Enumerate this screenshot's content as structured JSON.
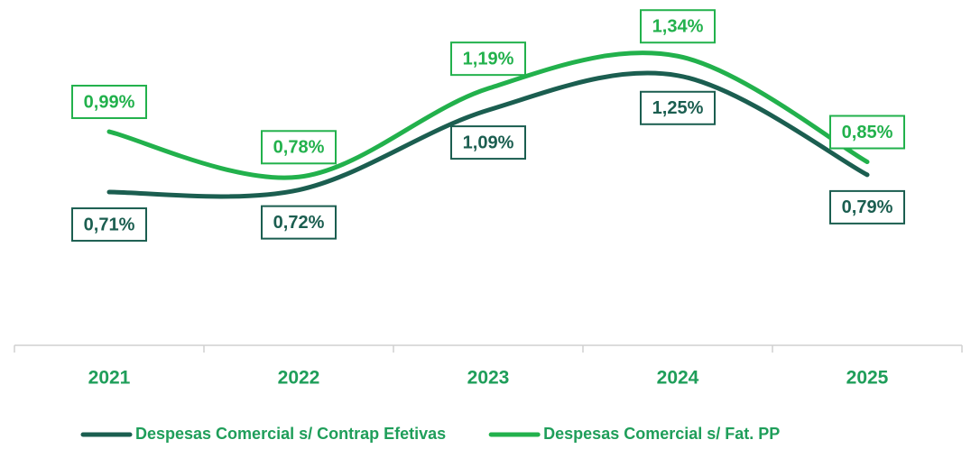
{
  "chart_data": {
    "type": "line",
    "categories": [
      "2021",
      "2022",
      "2023",
      "2024",
      "2025"
    ],
    "series": [
      {
        "name": "Despesas Comercial s/ Contrap Efetivas",
        "color": "#1b5e50",
        "values": [
          0.71,
          0.72,
          1.09,
          1.25,
          0.79
        ],
        "value_labels": [
          "0,71%",
          "0,72%",
          "1,09%",
          "1,25%",
          "0,79%"
        ]
      },
      {
        "name": "Despesas Comercial s/ Fat. PP",
        "color": "#22b14c",
        "values": [
          0.99,
          0.78,
          1.19,
          1.34,
          0.85
        ],
        "value_labels": [
          "0,99%",
          "0,78%",
          "1,19%",
          "1,34%",
          "0,85%"
        ]
      }
    ],
    "ylim": [
      0,
      1.6
    ],
    "label_color": "#1f9e5a"
  }
}
